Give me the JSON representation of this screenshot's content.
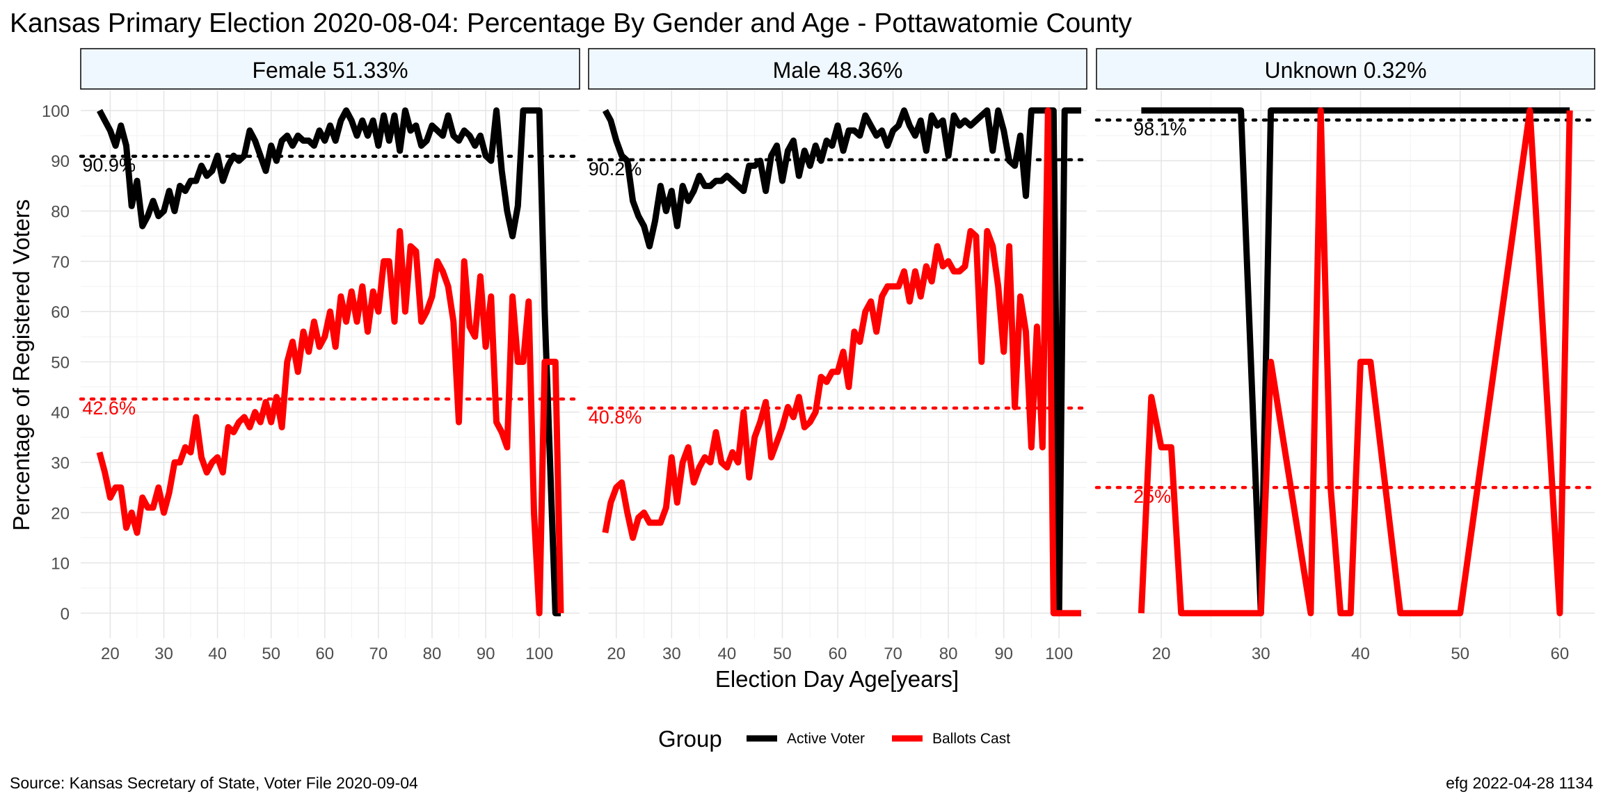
{
  "title": "Kansas Primary Election 2020-08-04:  Percentage By Gender and Age - Pottawatomie County",
  "xlabel": "Election Day Age[years]",
  "ylabel": "Percentage of Registered Voters",
  "legend": {
    "title": "Group",
    "entries": [
      {
        "label": "Active Voter",
        "color": "#000000"
      },
      {
        "label": "Ballots Cast",
        "color": "#ff0000"
      }
    ],
    "position": "bottom"
  },
  "caption_left": "Source:  Kansas Secretary of State, Voter File  2020-09-04",
  "caption_right": "efg 2022-04-28 1134",
  "chart_data": {
    "type": "line",
    "ylim": [
      -5,
      104
    ],
    "y_ticks": [
      0,
      10,
      20,
      30,
      40,
      50,
      60,
      70,
      80,
      90,
      100
    ],
    "grid": true,
    "panels": [
      {
        "strip": "Female 51.33%",
        "xlim": [
          14.5,
          107.5
        ],
        "x_ticks": [
          20,
          30,
          40,
          50,
          60,
          70,
          80,
          90,
          100
        ],
        "reference_lines": [
          {
            "series": "Active Voter",
            "value": 90.9,
            "label": "90.9%"
          },
          {
            "series": "Ballots Cast",
            "value": 42.6,
            "label": "42.6%"
          }
        ],
        "series": [
          {
            "name": "Active Voter",
            "color": "#000000",
            "x": [
              18,
              19,
              20,
              21,
              22,
              23,
              24,
              25,
              26,
              27,
              28,
              29,
              30,
              31,
              32,
              33,
              34,
              35,
              36,
              37,
              38,
              39,
              40,
              41,
              42,
              43,
              44,
              45,
              46,
              47,
              48,
              49,
              50,
              51,
              52,
              53,
              54,
              55,
              56,
              57,
              58,
              59,
              60,
              61,
              62,
              63,
              64,
              65,
              66,
              67,
              68,
              69,
              70,
              71,
              72,
              73,
              74,
              75,
              76,
              77,
              78,
              79,
              80,
              81,
              82,
              83,
              84,
              85,
              86,
              87,
              88,
              89,
              90,
              91,
              92,
              93,
              94,
              95,
              96,
              97,
              98,
              99,
              100,
              101,
              102,
              103,
              104
            ],
            "y": [
              100,
              98,
              96,
              93,
              97,
              93,
              81,
              86,
              77,
              79,
              82,
              79,
              80,
              84,
              80,
              85,
              84,
              86,
              86,
              89,
              87,
              88,
              91,
              86,
              89,
              91,
              90,
              91,
              96,
              94,
              91,
              88,
              93,
              90,
              94,
              95,
              93,
              95,
              94,
              94,
              93,
              96,
              94,
              97,
              94,
              98,
              100,
              98,
              95,
              98,
              95,
              98,
              93,
              99,
              94,
              99,
              92,
              100,
              96,
              97,
              93,
              94,
              97,
              96,
              95,
              99,
              95,
              94,
              96,
              95,
              93,
              95,
              91,
              90,
              100,
              88,
              80,
              75,
              81,
              100,
              100,
              100,
              100,
              60,
              30,
              0,
              0
            ]
          },
          {
            "name": "Ballots Cast",
            "color": "#ff0000",
            "x": [
              18,
              19,
              20,
              21,
              22,
              23,
              24,
              25,
              26,
              27,
              28,
              29,
              30,
              31,
              32,
              33,
              34,
              35,
              36,
              37,
              38,
              39,
              40,
              41,
              42,
              43,
              44,
              45,
              46,
              47,
              48,
              49,
              50,
              51,
              52,
              53,
              54,
              55,
              56,
              57,
              58,
              59,
              60,
              61,
              62,
              63,
              64,
              65,
              66,
              67,
              68,
              69,
              70,
              71,
              72,
              73,
              74,
              75,
              76,
              77,
              78,
              79,
              80,
              81,
              82,
              83,
              84,
              85,
              86,
              87,
              88,
              89,
              90,
              91,
              92,
              93,
              94,
              95,
              96,
              97,
              98,
              99,
              100,
              101,
              102,
              103,
              104
            ],
            "y": [
              32,
              28,
              23,
              25,
              25,
              17,
              20,
              16,
              23,
              21,
              21,
              25,
              20,
              24,
              30,
              30,
              33,
              32,
              39,
              31,
              28,
              30,
              31,
              28,
              37,
              36,
              38,
              39,
              37,
              40,
              38,
              42,
              38,
              43,
              37,
              50,
              54,
              48,
              56,
              52,
              58,
              53,
              55,
              60,
              53,
              63,
              58,
              64,
              58,
              65,
              56,
              64,
              60,
              70,
              70,
              58,
              76,
              60,
              73,
              72,
              58,
              60,
              63,
              70,
              68,
              65,
              58,
              38,
              70,
              57,
              55,
              67,
              53,
              63,
              38,
              36,
              33,
              63,
              50,
              50,
              62,
              20,
              0,
              50,
              50,
              50,
              0
            ]
          }
        ]
      },
      {
        "strip": "Male 48.36%",
        "xlim": [
          15,
          105
        ],
        "x_ticks": [
          20,
          30,
          40,
          50,
          60,
          70,
          80,
          90,
          100
        ],
        "reference_lines": [
          {
            "series": "Active Voter",
            "value": 90.2,
            "label": "90.2%"
          },
          {
            "series": "Ballots Cast",
            "value": 40.8,
            "label": "40.8%"
          }
        ],
        "series": [
          {
            "name": "Active Voter",
            "color": "#000000",
            "x": [
              18,
              19,
              20,
              21,
              22,
              23,
              24,
              25,
              26,
              27,
              28,
              29,
              30,
              31,
              32,
              33,
              34,
              35,
              36,
              37,
              38,
              39,
              40,
              41,
              42,
              43,
              44,
              45,
              46,
              47,
              48,
              49,
              50,
              51,
              52,
              53,
              54,
              55,
              56,
              57,
              58,
              59,
              60,
              61,
              62,
              63,
              64,
              65,
              66,
              67,
              68,
              69,
              70,
              71,
              72,
              73,
              74,
              75,
              76,
              77,
              78,
              79,
              80,
              81,
              82,
              83,
              84,
              85,
              86,
              87,
              88,
              89,
              90,
              91,
              92,
              93,
              94,
              95,
              96,
              97,
              98,
              99,
              100,
              101,
              102,
              103,
              104
            ],
            "y": [
              100,
              98,
              94,
              91,
              90,
              82,
              79,
              77,
              73,
              78,
              85,
              80,
              84,
              77,
              85,
              82,
              84,
              87,
              85,
              85,
              86,
              86,
              87,
              86,
              85,
              84,
              89,
              89,
              90,
              84,
              91,
              93,
              86,
              92,
              94,
              87,
              92,
              89,
              93,
              90,
              94,
              93,
              97,
              92,
              96,
              96,
              95,
              99,
              97,
              95,
              96,
              93,
              96,
              97,
              100,
              97,
              95,
              98,
              92,
              99,
              97,
              98,
              91,
              99,
              97,
              98,
              97,
              98,
              99,
              100,
              92,
              100,
              96,
              90,
              89,
              95,
              83,
              100,
              100,
              100,
              100,
              100,
              0,
              100,
              100,
              100,
              100
            ]
          },
          {
            "name": "Ballots Cast",
            "color": "#ff0000",
            "x": [
              18,
              19,
              20,
              21,
              22,
              23,
              24,
              25,
              26,
              27,
              28,
              29,
              30,
              31,
              32,
              33,
              34,
              35,
              36,
              37,
              38,
              39,
              40,
              41,
              42,
              43,
              44,
              45,
              46,
              47,
              48,
              49,
              50,
              51,
              52,
              53,
              54,
              55,
              56,
              57,
              58,
              59,
              60,
              61,
              62,
              63,
              64,
              65,
              66,
              67,
              68,
              69,
              70,
              71,
              72,
              73,
              74,
              75,
              76,
              77,
              78,
              79,
              80,
              81,
              82,
              83,
              84,
              85,
              86,
              87,
              88,
              89,
              90,
              91,
              92,
              93,
              94,
              95,
              96,
              97,
              98,
              99,
              100,
              101,
              102,
              103,
              104
            ],
            "y": [
              16,
              22,
              25,
              26,
              20,
              15,
              19,
              20,
              18,
              18,
              18,
              21,
              31,
              22,
              30,
              33,
              26,
              29,
              31,
              30,
              36,
              30,
              29,
              32,
              30,
              40,
              27,
              35,
              38,
              42,
              31,
              34,
              37,
              41,
              39,
              43,
              37,
              38,
              40,
              47,
              46,
              48,
              48,
              52,
              45,
              56,
              54,
              60,
              62,
              56,
              63,
              65,
              65,
              65,
              68,
              62,
              68,
              63,
              69,
              66,
              73,
              69,
              70,
              68,
              68,
              69,
              76,
              75,
              50,
              76,
              73,
              65,
              52,
              73,
              41,
              63,
              56,
              33,
              57,
              33,
              100,
              0,
              0,
              0,
              0,
              0,
              0
            ]
          }
        ]
      },
      {
        "strip": "Unknown 0.32%",
        "xlim": [
          13.5,
          63.5
        ],
        "x_ticks": [
          20,
          30,
          40,
          50,
          60
        ],
        "reference_lines": [
          {
            "series": "Active Voter",
            "value": 98.1,
            "label": "98.1%"
          },
          {
            "series": "Ballots Cast",
            "value": 25.0,
            "label": "25%"
          }
        ],
        "series": [
          {
            "name": "Active Voter",
            "color": "#000000",
            "x": [
              18,
              28,
              30,
              31,
              32,
              36,
              57,
              60,
              61
            ],
            "y": [
              100,
              100,
              0,
              100,
              100,
              100,
              100,
              100,
              100
            ]
          },
          {
            "name": "Ballots Cast",
            "color": "#ff0000",
            "x": [
              18,
              19,
              20,
              21,
              22,
              30,
              31,
              35,
              36,
              37,
              38,
              39,
              40,
              41,
              44,
              50,
              57,
              60,
              61
            ],
            "y": [
              0,
              43,
              33,
              33,
              0,
              0,
              50,
              0,
              100,
              25,
              0,
              0,
              50,
              50,
              0,
              0,
              100,
              0,
              100
            ]
          }
        ]
      }
    ]
  }
}
